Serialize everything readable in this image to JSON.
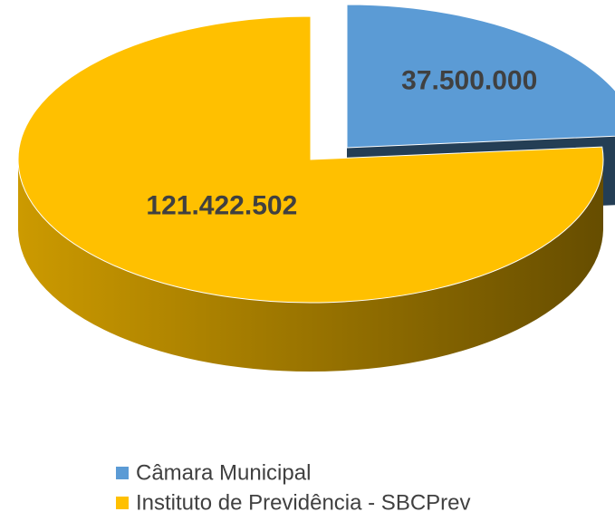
{
  "chart_data": {
    "type": "pie",
    "three_d": true,
    "categories": [
      "Câmara Municipal",
      "Instituto de Previdência - SBCPrev"
    ],
    "values": [
      37500000,
      121422502
    ],
    "value_labels": [
      "37.500.000",
      "121.422.502"
    ],
    "colors": [
      "#5b9bd5",
      "#ffc000"
    ],
    "explode": [
      true,
      false
    ],
    "legend": "bottom"
  }
}
